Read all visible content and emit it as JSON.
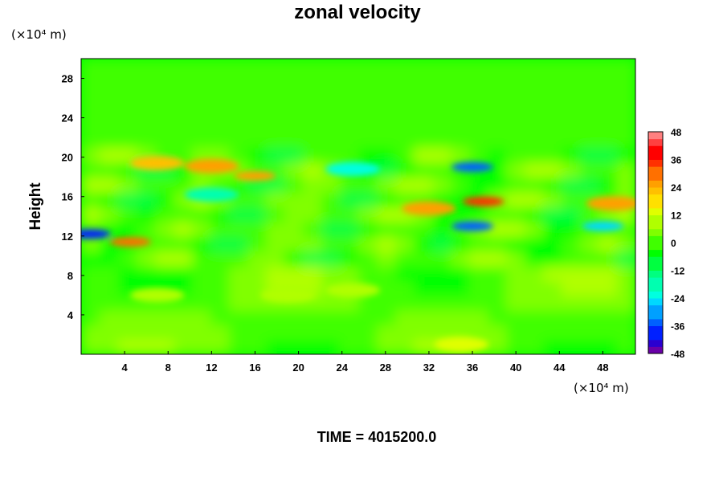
{
  "chart_data": {
    "type": "heatmap",
    "title": "zonal velocity",
    "xlabel": "",
    "ylabel": "Height",
    "x_unit_label": "(×10⁴ m)",
    "y_unit_label": "(×10⁴ m)",
    "xlim": [
      0,
      51
    ],
    "ylim": [
      0,
      30
    ],
    "x_ticks": [
      4,
      8,
      12,
      16,
      20,
      24,
      28,
      32,
      36,
      40,
      44,
      48
    ],
    "y_ticks": [
      4,
      8,
      12,
      16,
      20,
      24,
      28
    ],
    "colorbar": {
      "range": [
        -48,
        48
      ],
      "ticks": [
        48,
        36,
        24,
        12,
        0,
        -12,
        -24,
        -36,
        -48
      ],
      "levels": 32,
      "colors": [
        "#6a00a8",
        "#2a00d0",
        "#0020ff",
        "#0060ff",
        "#00a0ff",
        "#00d8ff",
        "#00ffe0",
        "#00ffb0",
        "#00ff80",
        "#00ff40",
        "#00ff00",
        "#40ff00",
        "#80ff00",
        "#b0ff00",
        "#e0ff00",
        "#ffe000",
        "#ffc000",
        "#ffa000",
        "#ff7000",
        "#ff3000",
        "#ff0000",
        "#ff4040",
        "#ff8080"
      ]
    },
    "features": [
      {
        "x": 7,
        "y": 19.4,
        "value": 20
      },
      {
        "x": 12,
        "y": 19.1,
        "value": 24
      },
      {
        "x": 16,
        "y": 18.1,
        "value": 28
      },
      {
        "x": 36,
        "y": 19.0,
        "value": -36
      },
      {
        "x": 25,
        "y": 18.8,
        "value": -20
      },
      {
        "x": 37,
        "y": 15.5,
        "value": 34
      },
      {
        "x": 32,
        "y": 14.8,
        "value": 24
      },
      {
        "x": 36,
        "y": 13.0,
        "value": -36
      },
      {
        "x": 0.8,
        "y": 12.2,
        "value": -38
      },
      {
        "x": 4.5,
        "y": 11.4,
        "value": 30
      },
      {
        "x": 48,
        "y": 13.0,
        "value": -28
      },
      {
        "x": 49,
        "y": 15.3,
        "value": 24
      },
      {
        "x": 12,
        "y": 16.2,
        "value": -18
      },
      {
        "x": 7,
        "y": 6.0,
        "value": 10
      },
      {
        "x": 19,
        "y": 6.0,
        "value": 8
      },
      {
        "x": 25,
        "y": 6.5,
        "value": 10
      },
      {
        "x": 35,
        "y": 1.0,
        "value": 12
      }
    ]
  },
  "footer": {
    "time_label": "TIME = 4015200.0"
  }
}
